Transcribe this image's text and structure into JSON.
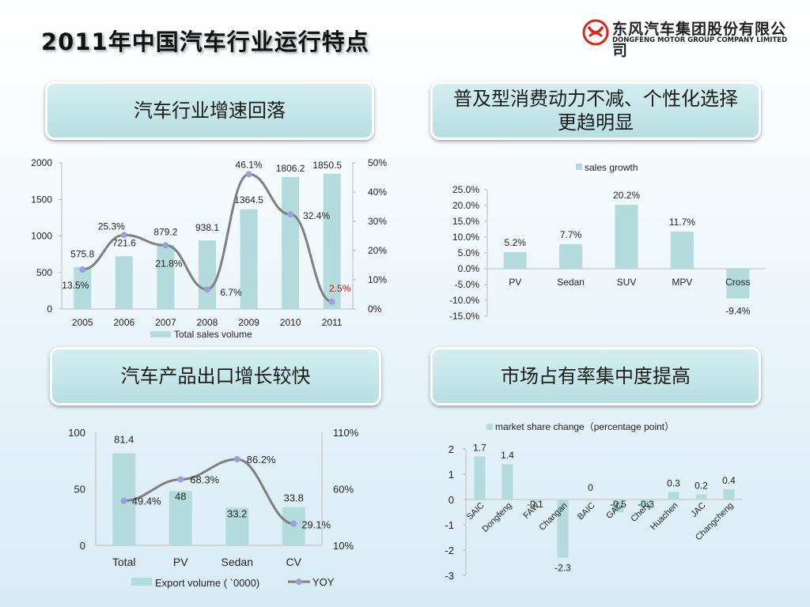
{
  "title": "2011年中国汽车行业运行特点",
  "logo": {
    "name_cn": "东风汽车集团股份有限公司",
    "name_en": "DONGFENG MOTOR GROUP COMPANY LIMITED"
  },
  "panels": {
    "p1": "汽车行业增速回落",
    "p2_line1": "普及型消费动力不减、个性化选择",
    "p2_line2": "更趋明显",
    "p3": "汽车产品出口增长较快",
    "p4": "市场占有率集中度提高"
  },
  "colors": {
    "bar": "#b3dbdc",
    "line": "#7f7f7f",
    "marker": "#9aa0dd",
    "highlight": "#ff0000",
    "logo_red": "#d9241c"
  },
  "chart_data": [
    {
      "id": "sales",
      "type": "bar+line",
      "categories": [
        "2005",
        "2006",
        "2007",
        "2008",
        "2009",
        "2010",
        "2011"
      ],
      "series": [
        {
          "name": "Total sales volume",
          "type": "bar",
          "axis": "left",
          "values": [
            575.8,
            721.6,
            879.2,
            938.1,
            1364.5,
            1806.2,
            1850.5
          ],
          "labels": [
            "575.8",
            "721.6",
            "879.2",
            "938.1",
            "1364.5",
            "1806.2",
            "1850.5"
          ]
        },
        {
          "type": "line",
          "axis": "right",
          "values": [
            13.5,
            25.3,
            21.8,
            6.7,
            46.1,
            32.4,
            2.5
          ],
          "labels": [
            "13.5%",
            "25.3%",
            "21.8%",
            "6.7%",
            "46.1%",
            "32.4%",
            "2.5%"
          ]
        }
      ],
      "y_left": {
        "range": [
          0,
          2000
        ],
        "ticks": [
          "0",
          "500",
          "1000",
          "1500",
          "2000"
        ]
      },
      "y_right": {
        "range": [
          0,
          50
        ],
        "ticks": [
          "0%",
          "10%",
          "20%",
          "30%",
          "40%",
          "50%"
        ]
      },
      "legend": "bottom"
    },
    {
      "id": "growth",
      "type": "bar",
      "categories": [
        "PV",
        "Sedan",
        "SUV",
        "MPV",
        "Cross"
      ],
      "series": [
        {
          "name": "sales growth",
          "values": [
            5.2,
            7.7,
            20.2,
            11.7,
            -9.4
          ],
          "labels": [
            "5.2%",
            "7.7%",
            "20.2%",
            "11.7%",
            "-9.4%"
          ]
        }
      ],
      "y": {
        "range": [
          -15,
          25
        ],
        "ticks": [
          "25.0%",
          "20.0%",
          "15.0%",
          "10.0%",
          "5.0%",
          "0.0%",
          "-5.0%",
          "-10.0%",
          "-15.0%"
        ]
      },
      "legend": "top"
    },
    {
      "id": "export",
      "type": "bar+line",
      "categories": [
        "Total",
        "PV",
        "Sedan",
        "CV"
      ],
      "series": [
        {
          "name": "Export volume ( `0000)",
          "type": "bar",
          "axis": "left",
          "values": [
            81.4,
            48,
            33.2,
            33.8
          ],
          "labels": [
            "81.4",
            "48",
            "33.2",
            "33.8"
          ]
        },
        {
          "name": "YOY",
          "type": "line",
          "axis": "right",
          "values": [
            49.4,
            68.3,
            86.2,
            29.1
          ],
          "labels": [
            "49.4%",
            "68.3%",
            "86.2%",
            "29.1%"
          ]
        }
      ],
      "y_left": {
        "range": [
          0,
          100
        ],
        "ticks": [
          "0",
          "50",
          "100"
        ]
      },
      "y_right": {
        "range": [
          10,
          110
        ],
        "ticks": [
          "10%",
          "60%",
          "110%"
        ]
      },
      "legend": "bottom"
    },
    {
      "id": "share",
      "type": "bar",
      "categories": [
        "SAIC",
        "Dongfeng",
        "FAW",
        "Changan",
        "BAIC",
        "GAC",
        "Chery",
        "Huachen",
        "JAC",
        "Changcheng"
      ],
      "series": [
        {
          "name": "market share change（percentage point）",
          "values": [
            1.7,
            1.4,
            -0.1,
            -2.3,
            0,
            -0.5,
            -0.3,
            0.3,
            0.2,
            0.4
          ],
          "labels": [
            "1.7",
            "1.4",
            "-0.1",
            "-2.3",
            "0",
            "-0.5",
            "-0.3",
            "0.3",
            "0.2",
            "0.4"
          ]
        }
      ],
      "y": {
        "range": [
          -3,
          2
        ],
        "ticks": [
          "2",
          "1",
          "0",
          "-1",
          "-2",
          "-3"
        ]
      },
      "legend": "top"
    }
  ]
}
